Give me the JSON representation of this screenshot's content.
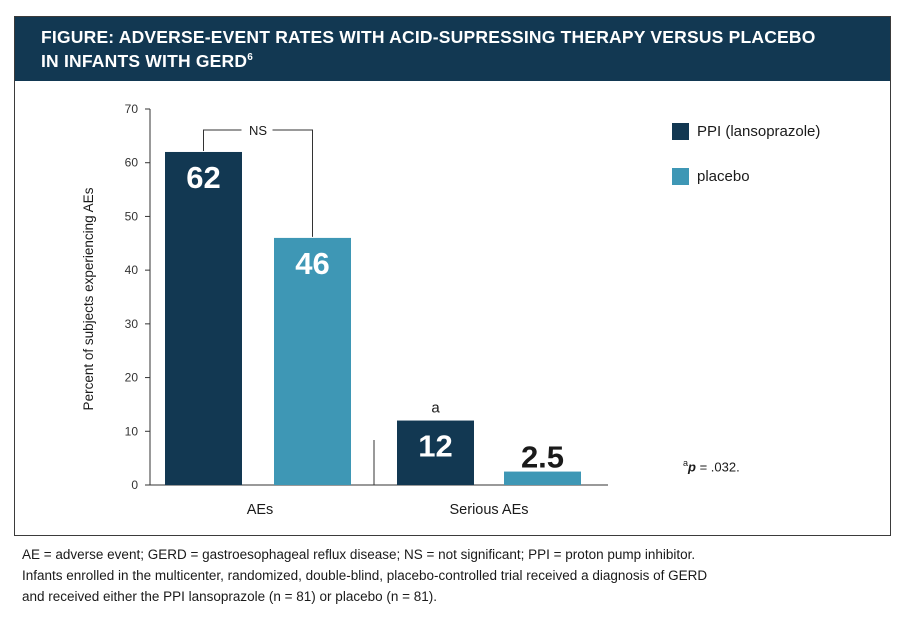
{
  "header": {
    "line1": "FIGURE: ADVERSE-EVENT RATES WITH ACID-SUPRESSING THERAPY VERSUS PLACEBO",
    "line2": "IN INFANTS WITH GERD",
    "superscript": "6"
  },
  "chart_data": {
    "type": "bar",
    "categories": [
      "AEs",
      "Serious AEs"
    ],
    "series": [
      {
        "name": "PPI (lansoprazole)",
        "values": [
          62,
          12
        ],
        "labels": [
          "62",
          "12"
        ],
        "color": "#123852"
      },
      {
        "name": "placebo",
        "values": [
          46,
          2.5
        ],
        "labels": [
          "46",
          "2.5"
        ],
        "color": "#3e97b5"
      }
    ],
    "ylabel": "Percent of subjects experiencing AEs",
    "ylim": [
      0,
      70
    ],
    "yticks": [
      0,
      10,
      20,
      30,
      40,
      50,
      60,
      70
    ],
    "legend_position": "right",
    "annotations": {
      "ns_bracket": "NS",
      "significance_mark": "a"
    }
  },
  "footnote": {
    "marker": "a",
    "p_symbol": "p",
    "text": " = .032."
  },
  "caption": {
    "line1": "AE = adverse event; GERD = gastroesophageal reflux disease; NS = not significant; PPI = proton pump inhibitor.",
    "line2": "Infants enrolled in the multicenter, randomized, double-blind, placebo-controlled trial received a diagnosis of GERD",
    "line3": "and received either the PPI lansoprazole (n = 81) or placebo (n = 81)."
  }
}
